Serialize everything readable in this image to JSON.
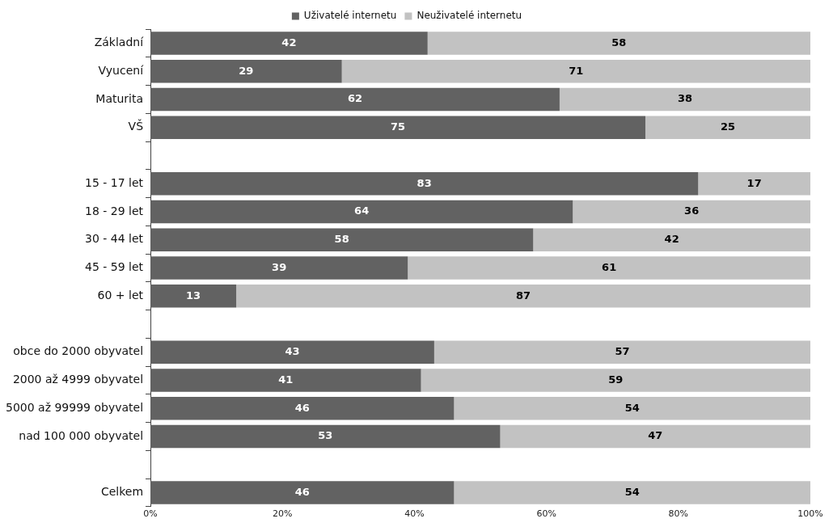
{
  "chart_data": {
    "type": "bar",
    "orientation": "horizontal",
    "stacked": true,
    "data_labels": true,
    "legend": "top",
    "grid": false,
    "categories": [
      "Základní",
      "Vyucení",
      "Maturita",
      "VŠ",
      null,
      "15 - 17 let",
      "18 - 29 let",
      "30 - 44 let",
      "45 - 59 let",
      "60 + let",
      null,
      "obce do 2000 obyvatel",
      "2000 až 4999 obyvatel",
      "5000 až 99999 obyvatel",
      "nad 100 000 obyvatel",
      null,
      "Celkem"
    ],
    "series": [
      {
        "name": "Uživatelé internetu",
        "color": "#626262",
        "values": [
          42,
          29,
          62,
          75,
          null,
          83,
          64,
          58,
          39,
          13,
          null,
          43,
          41,
          46,
          53,
          null,
          46
        ]
      },
      {
        "name": "Neuživatelé internetu",
        "color": "#c2c2c2",
        "values": [
          58,
          71,
          38,
          25,
          null,
          17,
          36,
          42,
          61,
          87,
          null,
          57,
          59,
          54,
          47,
          null,
          54
        ]
      }
    ],
    "xlim": [
      0,
      100
    ],
    "xticks": [
      {
        "value": 0,
        "label": "0%"
      },
      {
        "value": 20,
        "label": "20%"
      },
      {
        "value": 40,
        "label": "40%"
      },
      {
        "value": 60,
        "label": "60%"
      },
      {
        "value": 80,
        "label": "80%"
      },
      {
        "value": 100,
        "label": "100%"
      }
    ]
  }
}
